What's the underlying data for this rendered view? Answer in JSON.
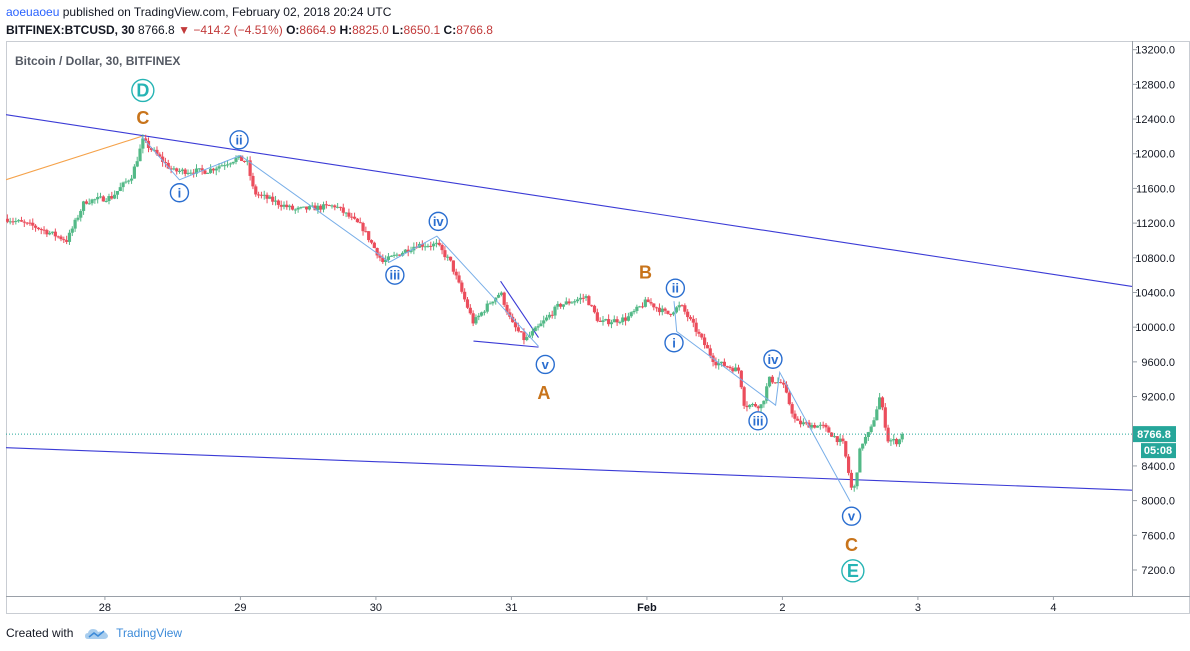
{
  "header": {
    "author": "aoeuaoeu",
    "published": "published on TradingView.com, February 02, 2018 20:24 UTC",
    "symbol": "BITFINEX:BTCUSD, 30",
    "last": "8766.8",
    "change": "−414.2 (−4.51%)",
    "open_label": "O:",
    "open": "8664.9",
    "high_label": "H:",
    "high": "8825.0",
    "low_label": "L:",
    "low": "8650.1",
    "close_label": "C:",
    "close": "8766.8"
  },
  "footer": {
    "created_with": "Created with",
    "brand": "TradingView"
  },
  "chart_data": {
    "type": "candlestick",
    "title": "Bitcoin / Dollar, 30, BITFINEX",
    "x_ticks": [
      {
        "label": "28",
        "day": 28
      },
      {
        "label": "29",
        "day": 29
      },
      {
        "label": "30",
        "day": 30
      },
      {
        "label": "31",
        "day": 31
      },
      {
        "label": "Feb",
        "day": 32
      },
      {
        "label": "2",
        "day": 33
      },
      {
        "label": "3",
        "day": 34
      },
      {
        "label": "4",
        "day": 35
      }
    ],
    "x_range_days": [
      27.27,
      35.58
    ],
    "y_ticks": [
      "13200.0",
      "12800.0",
      "12400.0",
      "12000.0",
      "11600.0",
      "11200.0",
      "10800.0",
      "10400.0",
      "10000.0",
      "9600.0",
      "9200.0",
      "8800.0",
      "8400.0",
      "8000.0",
      "7600.0",
      "7200.0"
    ],
    "ylim": [
      6900,
      13300
    ],
    "last_price": "8766.8",
    "countdown": "05:08",
    "up_color": "#53b987",
    "down_color": "#eb4d5c",
    "price_path": [
      {
        "day": 27.28,
        "price": 11250
      },
      {
        "day": 27.5,
        "price": 11150
      },
      {
        "day": 27.72,
        "price": 11000
      },
      {
        "day": 27.85,
        "price": 11450
      },
      {
        "day": 28.05,
        "price": 11500
      },
      {
        "day": 28.2,
        "price": 11750
      },
      {
        "day": 28.28,
        "price": 12150
      },
      {
        "day": 28.5,
        "price": 11800
      },
      {
        "day": 28.75,
        "price": 11800
      },
      {
        "day": 28.98,
        "price": 11950
      },
      {
        "day": 29.05,
        "price": 11900
      },
      {
        "day": 29.1,
        "price": 11550
      },
      {
        "day": 29.4,
        "price": 11350
      },
      {
        "day": 29.7,
        "price": 11400
      },
      {
        "day": 29.9,
        "price": 11150
      },
      {
        "day": 30.05,
        "price": 10750
      },
      {
        "day": 30.3,
        "price": 10950
      },
      {
        "day": 30.45,
        "price": 10950
      },
      {
        "day": 30.55,
        "price": 10750
      },
      {
        "day": 30.72,
        "price": 10050
      },
      {
        "day": 30.85,
        "price": 10300
      },
      {
        "day": 30.92,
        "price": 10400
      },
      {
        "day": 31.0,
        "price": 10050
      },
      {
        "day": 31.1,
        "price": 9850
      },
      {
        "day": 31.2,
        "price": 10000
      },
      {
        "day": 31.35,
        "price": 10250
      },
      {
        "day": 31.55,
        "price": 10350
      },
      {
        "day": 31.65,
        "price": 10050
      },
      {
        "day": 31.85,
        "price": 10100
      },
      {
        "day": 32.0,
        "price": 10300
      },
      {
        "day": 32.15,
        "price": 10150
      },
      {
        "day": 32.25,
        "price": 10250
      },
      {
        "day": 32.35,
        "price": 10000
      },
      {
        "day": 32.5,
        "price": 9600
      },
      {
        "day": 32.68,
        "price": 9500
      },
      {
        "day": 32.72,
        "price": 9100
      },
      {
        "day": 32.85,
        "price": 9100
      },
      {
        "day": 32.9,
        "price": 9400
      },
      {
        "day": 33.0,
        "price": 9350
      },
      {
        "day": 33.1,
        "price": 8900
      },
      {
        "day": 33.3,
        "price": 8850
      },
      {
        "day": 33.45,
        "price": 8650
      },
      {
        "day": 33.52,
        "price": 8050
      },
      {
        "day": 33.58,
        "price": 8650
      },
      {
        "day": 33.65,
        "price": 8800
      },
      {
        "day": 33.72,
        "price": 9200
      },
      {
        "day": 33.78,
        "price": 8700
      },
      {
        "day": 33.85,
        "price": 8680
      },
      {
        "day": 33.9,
        "price": 8766.8
      }
    ],
    "trendlines": [
      {
        "name": "upper-channel",
        "color": "#3b3bd6",
        "from": {
          "day": 27.27,
          "price": 12450
        },
        "to": {
          "day": 35.58,
          "price": 10470
        }
      },
      {
        "name": "lower-channel",
        "color": "#3b3bd6",
        "from": {
          "day": 27.27,
          "price": 8610
        },
        "to": {
          "day": 35.58,
          "price": 8120
        }
      },
      {
        "name": "orange-leg",
        "color": "#f5a24a",
        "from": {
          "day": 27.27,
          "price": 11700
        },
        "to": {
          "day": 28.27,
          "price": 12200
        }
      },
      {
        "name": "a-wedge-top",
        "color": "#3b3bd6",
        "from": {
          "day": 30.92,
          "price": 10530
        },
        "to": {
          "day": 31.2,
          "price": 9880
        }
      },
      {
        "name": "a-wedge-bottom",
        "color": "#3b3bd6",
        "from": {
          "day": 30.72,
          "price": 9840
        },
        "to": {
          "day": 31.2,
          "price": 9770
        }
      }
    ],
    "wave_polylines": [
      {
        "name": "wave-a-path",
        "color": "#78aee8",
        "points": [
          {
            "day": 28.27,
            "price": 12200
          },
          {
            "day": 28.55,
            "price": 11700
          },
          {
            "day": 29.0,
            "price": 11980
          },
          {
            "day": 30.1,
            "price": 10750
          },
          {
            "day": 30.45,
            "price": 11050
          },
          {
            "day": 31.2,
            "price": 9780
          }
        ]
      },
      {
        "name": "wave-c-path",
        "color": "#78aee8",
        "points": [
          {
            "day": 32.2,
            "price": 10300
          },
          {
            "day": 32.22,
            "price": 9950
          },
          {
            "day": 32.95,
            "price": 9100
          },
          {
            "day": 32.98,
            "price": 9480
          },
          {
            "day": 33.5,
            "price": 7990
          }
        ]
      }
    ],
    "wave_labels": [
      {
        "text": "D",
        "style": "circle",
        "color": "#26b4b4",
        "day": 28.28,
        "price": 12730,
        "size": "big"
      },
      {
        "text": "C",
        "style": "plain",
        "color": "#c8741b",
        "day": 28.28,
        "price": 12410,
        "size": "big"
      },
      {
        "text": "i",
        "style": "circle",
        "color": "#2a6ed0",
        "day": 28.55,
        "price": 11550,
        "size": "small"
      },
      {
        "text": "ii",
        "style": "circle",
        "color": "#2a6ed0",
        "day": 28.99,
        "price": 12160,
        "size": "small"
      },
      {
        "text": "iii",
        "style": "circle",
        "color": "#2a6ed0",
        "day": 30.14,
        "price": 10600,
        "size": "small"
      },
      {
        "text": "iv",
        "style": "circle",
        "color": "#2a6ed0",
        "day": 30.46,
        "price": 11220,
        "size": "small"
      },
      {
        "text": "v",
        "style": "circle",
        "color": "#2a6ed0",
        "day": 31.25,
        "price": 9570,
        "size": "small"
      },
      {
        "text": "A",
        "style": "plain",
        "color": "#c8741b",
        "day": 31.24,
        "price": 9240,
        "size": "big"
      },
      {
        "text": "B",
        "style": "plain",
        "color": "#c8741b",
        "day": 31.99,
        "price": 10630,
        "size": "big"
      },
      {
        "text": "ii",
        "style": "circle",
        "color": "#2a6ed0",
        "day": 32.21,
        "price": 10450,
        "size": "small"
      },
      {
        "text": "i",
        "style": "circle",
        "color": "#2a6ed0",
        "day": 32.2,
        "price": 9820,
        "size": "small"
      },
      {
        "text": "iv",
        "style": "circle",
        "color": "#2a6ed0",
        "day": 32.93,
        "price": 9630,
        "size": "small"
      },
      {
        "text": "iii",
        "style": "circle",
        "color": "#2a6ed0",
        "day": 32.82,
        "price": 8920,
        "size": "small"
      },
      {
        "text": "v",
        "style": "circle",
        "color": "#2a6ed0",
        "day": 33.51,
        "price": 7820,
        "size": "small"
      },
      {
        "text": "C",
        "style": "plain",
        "color": "#c8741b",
        "day": 33.51,
        "price": 7490,
        "size": "big"
      },
      {
        "text": "E",
        "style": "circle",
        "color": "#26b4b4",
        "day": 33.52,
        "price": 7190,
        "size": "big"
      }
    ]
  }
}
